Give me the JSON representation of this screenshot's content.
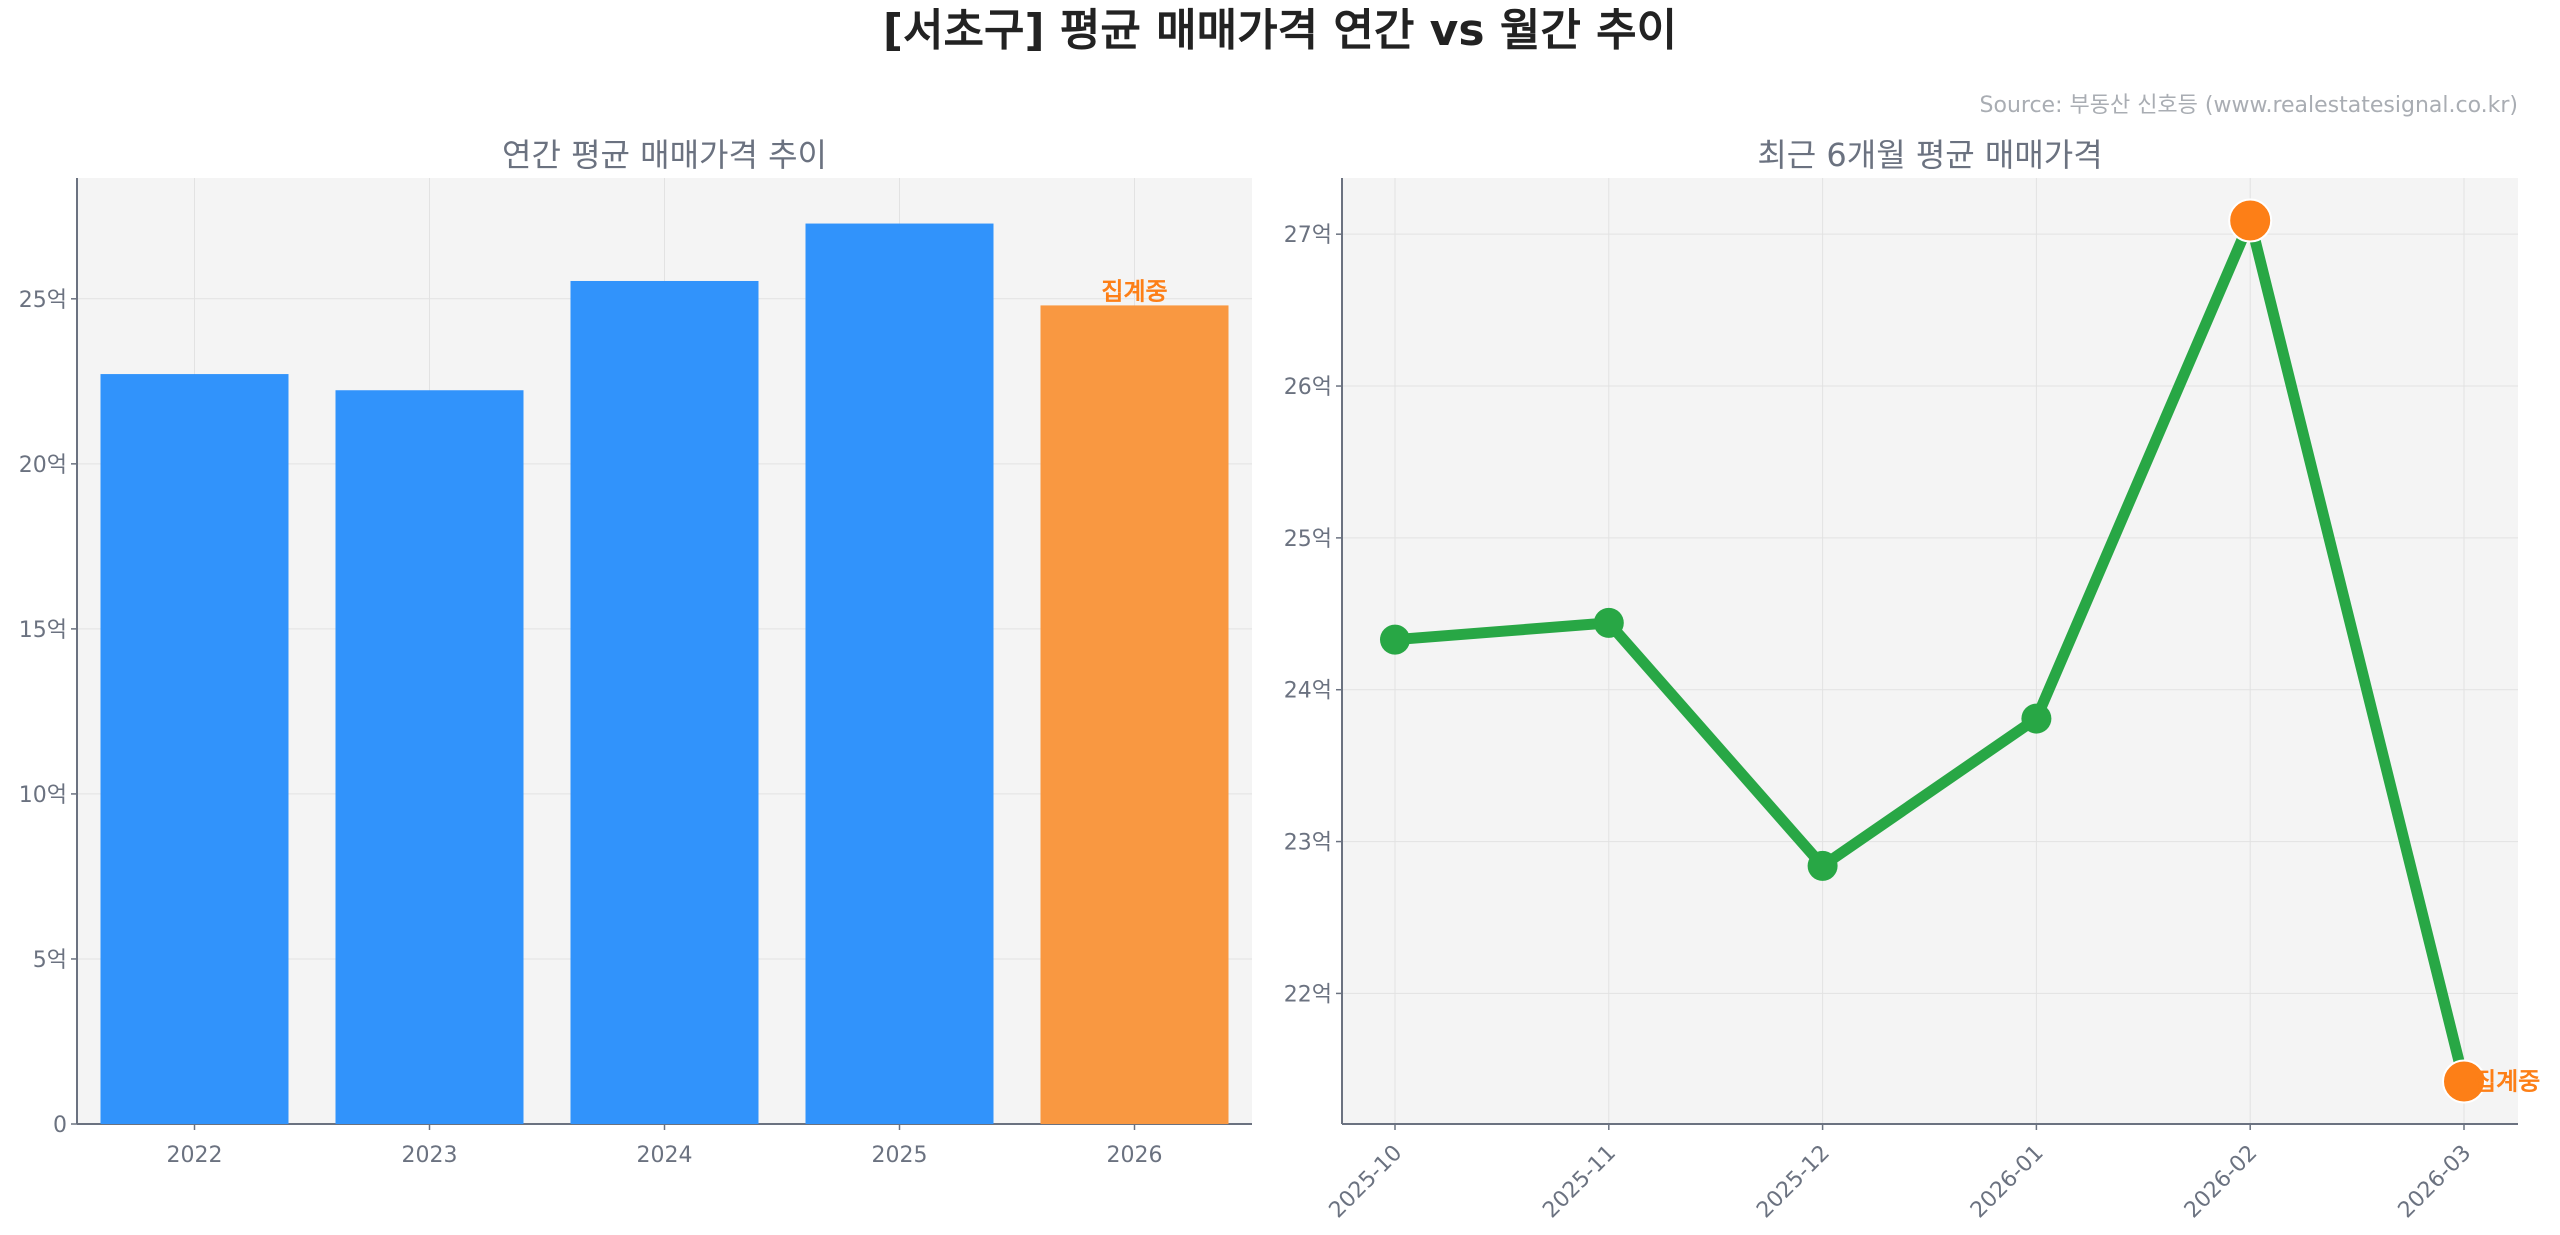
{
  "title": "[서초구] 평균 매매가격 연간 vs 월간 추이",
  "source": "Source: 부동산 신호등 (www.realestatesignal.co.kr)",
  "colors": {
    "bar": "#3193fb",
    "bar_partial": "#f99841",
    "line": "#28a745",
    "highlight": "#fd7f17",
    "pending_label": "#fd7f17",
    "plot_bg": "#f4f4f4"
  },
  "chart_data": [
    {
      "type": "bar",
      "title": "연간 평균 매매가격 추이",
      "categories": [
        "2022",
        "2023",
        "2024",
        "2025",
        "2026"
      ],
      "values": [
        22.72,
        22.23,
        25.54,
        27.28,
        24.8
      ],
      "partial_index": 4,
      "annotation": "집계중",
      "yticks": [
        0,
        5,
        10,
        15,
        20,
        25
      ],
      "ytick_labels": [
        "0",
        "5억",
        "10억",
        "15억",
        "20억",
        "25억"
      ],
      "ylim": [
        0,
        28.66
      ],
      "grid": true
    },
    {
      "type": "line",
      "title": "최근 6개월 평균 매매가격",
      "categories": [
        "2025-10",
        "2025-11",
        "2025-12",
        "2026-01",
        "2026-02",
        "2026-03"
      ],
      "values": [
        24.33,
        24.44,
        22.84,
        23.81,
        27.09,
        21.42
      ],
      "highlight_indices": [
        4,
        5
      ],
      "annotation": "집계중",
      "yticks": [
        22,
        23,
        24,
        25,
        26,
        27
      ],
      "ytick_labels": [
        "22억",
        "23억",
        "24억",
        "25억",
        "26억",
        "27억"
      ],
      "ylim": [
        21.14,
        27.37
      ],
      "grid": true
    }
  ]
}
